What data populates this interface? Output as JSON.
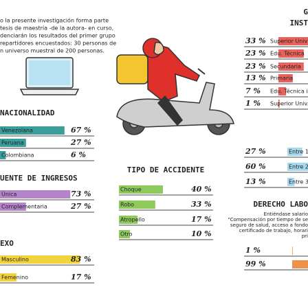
{
  "intro": [
    "o la presente investigación forma parte",
    "tesis de maestría -de la autora- en curso,",
    "denciarán los resultados del primer grupo",
    "repartidores encuestados: 30 personas de",
    "n universo muestral de 200 personas."
  ],
  "panels": [
    {
      "title": [
        "NACIONALIDAD"
      ],
      "color": "#3c9e9a",
      "rows": [
        {
          "label": "Venezolana",
          "value": 67,
          "value_label": "67 %"
        },
        {
          "label": "Peruana",
          "value": 27,
          "value_label": "27 %"
        },
        {
          "label": "Colombiana",
          "value": 6,
          "value_label": "6 %"
        }
      ]
    },
    {
      "title": [
        "UENTE DE INGRESOS"
      ],
      "color": "#b583c8",
      "rows": [
        {
          "label": "Única",
          "value": 73,
          "value_label": "73 %"
        },
        {
          "label": "Complementaria",
          "value": 27,
          "value_label": "27 %"
        }
      ]
    },
    {
      "title": [
        "EXO"
      ],
      "color": "#f2d33c",
      "rows": [
        {
          "label": "Masculino",
          "value": 83,
          "value_label": "83 %"
        },
        {
          "label": "Femenino",
          "value": 17,
          "value_label": "17 %"
        }
      ]
    },
    {
      "title": [
        "TIPO DE ACCIDENTE"
      ],
      "color": "#8ec95c",
      "rows": [
        {
          "label": "Choque",
          "value": 40,
          "value_label": "40 %"
        },
        {
          "label": "Robo",
          "value": 33,
          "value_label": "33 %"
        },
        {
          "label": "Atropello",
          "value": 17,
          "value_label": "17 %"
        },
        {
          "label": "Otro",
          "value": 10,
          "value_label": "10 %"
        }
      ]
    },
    {
      "title": [
        "G",
        "INST"
      ],
      "color": "#e9625b",
      "rows": [
        {
          "label": "Superior Univ",
          "value": 33,
          "value_label": "33 %"
        },
        {
          "label": "Edu. Técnica",
          "value": 23,
          "value_label": "23 %"
        },
        {
          "label": "Secundaria",
          "value": 23,
          "value_label": "23 %"
        },
        {
          "label": "Primaria",
          "value": 13,
          "value_label": "13 %"
        },
        {
          "label": "Edu. Técnica i",
          "value": 7,
          "value_label": "7 %"
        },
        {
          "label": "Superior Univ. i",
          "value": 1,
          "value_label": "1 %"
        }
      ]
    },
    {
      "title": [],
      "color": "#a3d8ef",
      "rows": [
        {
          "label": "Entre 1",
          "value": 27,
          "value_label": "27 %"
        },
        {
          "label": "Entre 2",
          "value": 60,
          "value_label": "60 %"
        },
        {
          "label": "Entre 3",
          "value": 13,
          "value_label": "13 %"
        }
      ]
    },
    {
      "title": [
        "DERECHO LABO"
      ],
      "text": [
        "Entiéndase salario",
        "\"Compensación por tiempo de se",
        "seguro de salud, acceso a fondo",
        "certificado de trabajo, horari",
        "pri"
      ],
      "color": "#f0914b",
      "rows": [
        {
          "value": 1,
          "value_label": "1 %"
        },
        {
          "value": 99,
          "value_label": "99 %"
        }
      ]
    }
  ]
}
